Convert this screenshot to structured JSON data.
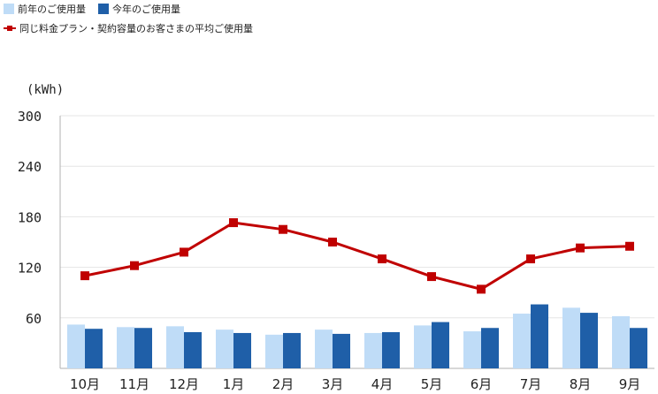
{
  "legend": {
    "prev_year": "前年のご使用量",
    "this_year": "今年のご使用量",
    "average": "同じ料金プラン・契約容量のお客さまの平均ご使用量"
  },
  "colors": {
    "prev_year": "#bfdcf7",
    "this_year": "#1f5fa8",
    "average": "#c00000",
    "grid": "#e6e6e6",
    "axis": "#b0b0b0"
  },
  "chart_data": {
    "type": "bar",
    "ylabel": "(kWh)",
    "ylim": [
      0,
      300
    ],
    "yticks": [
      60,
      120,
      180,
      240,
      300
    ],
    "categories": [
      "10月",
      "11月",
      "12月",
      "1月",
      "2月",
      "3月",
      "4月",
      "5月",
      "6月",
      "7月",
      "8月",
      "9月"
    ],
    "series": [
      {
        "name": "前年のご使用量",
        "type": "bar",
        "values": [
          52,
          49,
          50,
          46,
          40,
          46,
          42,
          51,
          44,
          65,
          72,
          62
        ]
      },
      {
        "name": "今年のご使用量",
        "type": "bar",
        "values": [
          47,
          48,
          43,
          42,
          42,
          41,
          43,
          55,
          48,
          76,
          66,
          48
        ]
      },
      {
        "name": "同じ料金プラン・契約容量のお客さまの平均ご使用量",
        "type": "line",
        "values": [
          110,
          122,
          138,
          173,
          165,
          150,
          130,
          109,
          94,
          130,
          143,
          145
        ]
      }
    ],
    "grid": true,
    "legend_position": "top-left"
  }
}
